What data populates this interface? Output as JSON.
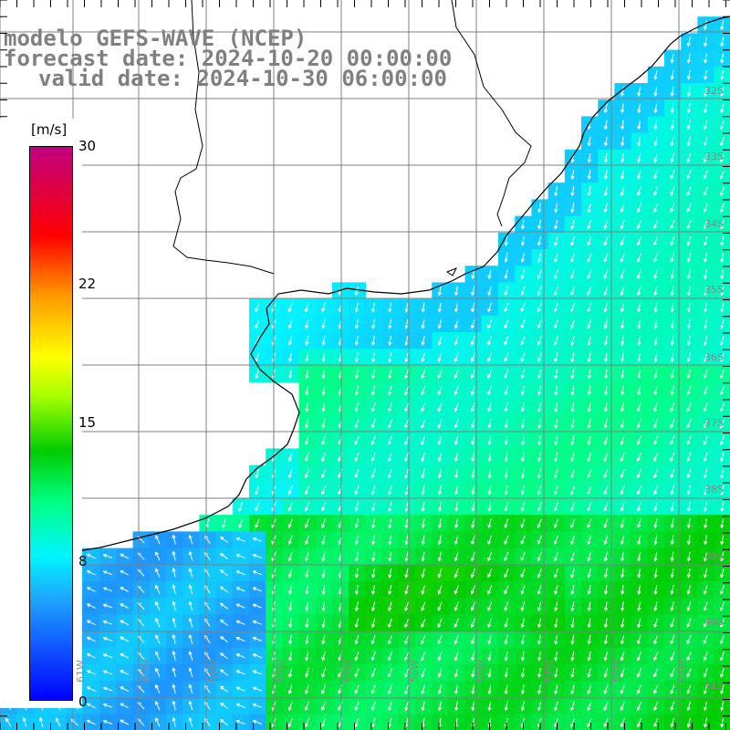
{
  "title": {
    "line1": "modelo GEFS-WAVE (NCEP)",
    "line2": "forecast date: 2024-10-20 00:00:00",
    "line3": "valid date: 2024-10-30 06:00:00"
  },
  "colorbar": {
    "unit": "[m/s]",
    "labels": [
      "30",
      "22",
      "15",
      "8",
      "0"
    ],
    "range": [
      0,
      30
    ],
    "colors": [
      "#0000ff",
      "#1fa3ff",
      "#00f5ff",
      "#00ff80",
      "#00cc00",
      "#a8ff00",
      "#ffff00",
      "#ff9a00",
      "#ff0000",
      "#c0007f"
    ]
  },
  "lat_labels": [
    "32S",
    "33S",
    "34S",
    "35S",
    "36S",
    "37S",
    "38S",
    "39S",
    "40S",
    "41S"
  ],
  "lon_labels": [
    "61W",
    "60W",
    "59W",
    "58W",
    "57W",
    "56W",
    "55W",
    "54W",
    "53W",
    "52W",
    "51W"
  ],
  "map": {
    "land_color": "#ffffff",
    "grid_color": "#808080",
    "coast_color": "#000000",
    "arrow_color": "#ffffff",
    "wind_direction_dominant": "south-southwest"
  }
}
